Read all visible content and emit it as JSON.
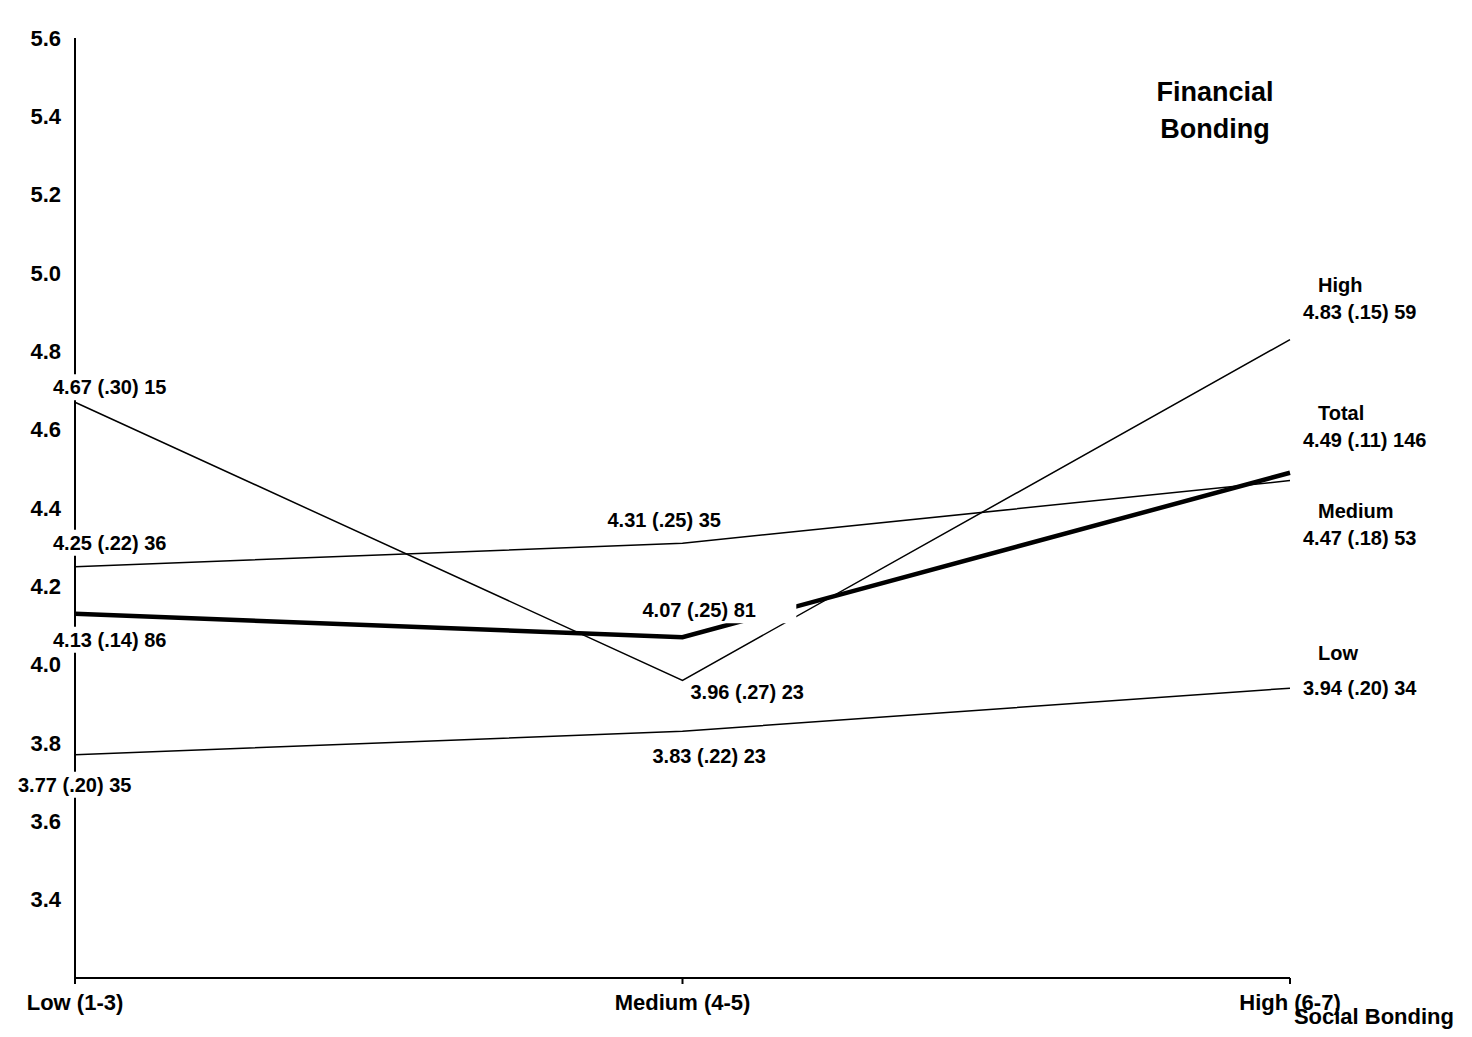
{
  "chart_data": {
    "type": "line",
    "x_label": "Social Bonding",
    "legend_title": "Financial Bonding",
    "categories": [
      "Low (1-3)",
      "Medium (4-5)",
      "High (6-7)"
    ],
    "ylim": [
      3.2,
      5.6
    ],
    "yticks": [
      3.4,
      3.6,
      3.8,
      {
        "value": 4,
        "label": "4.0"
      },
      4.2,
      4.4,
      4.6,
      4.8,
      {
        "value": 5,
        "label": "5.0"
      },
      5.2,
      5.4,
      5.6
    ],
    "data_labels": true,
    "series": [
      {
        "name": "High",
        "color": "#000000",
        "line_style": "solid",
        "values": [
          4.67,
          3.96,
          4.83
        ],
        "value_labels": [
          "4.67 (.30) 15",
          "3.96 (.27) 23",
          "4.83 (.15) 59"
        ]
      },
      {
        "name": "Medium",
        "color": "#000000",
        "line_style": "solid",
        "values": [
          4.25,
          4.31,
          4.47
        ],
        "value_labels": [
          "4.25 (.22) 36",
          "4.31 (.25) 35",
          "4.47 (.18) 53"
        ]
      },
      {
        "name": "Low",
        "color": "#000000",
        "line_style": "solid",
        "values": [
          3.77,
          3.83,
          3.94
        ],
        "value_labels": [
          "3.77 (.20) 35",
          "3.83 (.22) 23",
          "3.94 (.20) 34"
        ]
      },
      {
        "name": "Total",
        "color": "#000000",
        "line_style": "bold",
        "values": [
          4.13,
          4.07,
          4.49
        ],
        "value_labels": [
          "4.13 (.14) 86",
          "4.07 (.25) 81",
          "4.49 (.11) 146"
        ]
      }
    ]
  }
}
